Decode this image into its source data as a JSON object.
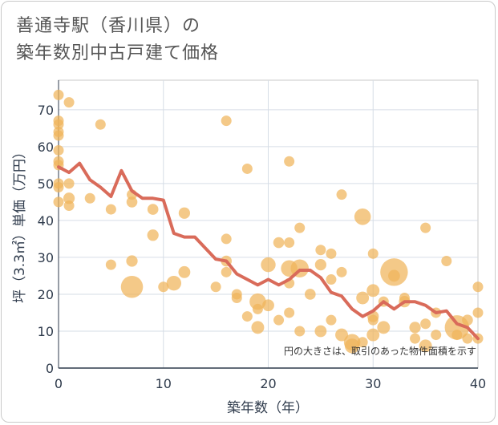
{
  "chart_data": {
    "type": "scatter",
    "title_line1": "善通寺駅（香川県）の",
    "title_line2": "築年数別中古戸建て価格",
    "xlabel": "築年数（年）",
    "ylabel": "坪（3.3㎡）単価（万円）",
    "xlim": [
      0,
      40
    ],
    "ylim": [
      0,
      78
    ],
    "xticks": [
      0,
      10,
      20,
      30,
      40
    ],
    "yticks": [
      0,
      10,
      20,
      30,
      40,
      50,
      60,
      70
    ],
    "annotation": "円の大きさは、取引のあった物件面積を示す",
    "bubble_color": "#f0b45a",
    "line_color": "#d96b5a",
    "grid": true,
    "scatter_points": [
      {
        "x": 0,
        "y": 74,
        "size": 1
      },
      {
        "x": 0,
        "y": 67,
        "size": 1
      },
      {
        "x": 0,
        "y": 66,
        "size": 1
      },
      {
        "x": 0,
        "y": 64,
        "size": 1
      },
      {
        "x": 0,
        "y": 63,
        "size": 1
      },
      {
        "x": 0,
        "y": 59,
        "size": 1
      },
      {
        "x": 0,
        "y": 56,
        "size": 1
      },
      {
        "x": 0,
        "y": 55,
        "size": 1
      },
      {
        "x": 0,
        "y": 50,
        "size": 1
      },
      {
        "x": 0,
        "y": 49,
        "size": 1
      },
      {
        "x": 0,
        "y": 45,
        "size": 1
      },
      {
        "x": 1,
        "y": 72,
        "size": 1
      },
      {
        "x": 1,
        "y": 50,
        "size": 1
      },
      {
        "x": 1,
        "y": 46,
        "size": 1.2
      },
      {
        "x": 1,
        "y": 44,
        "size": 1
      },
      {
        "x": 3,
        "y": 46,
        "size": 1
      },
      {
        "x": 4,
        "y": 66,
        "size": 1
      },
      {
        "x": 5,
        "y": 43,
        "size": 1
      },
      {
        "x": 5,
        "y": 28,
        "size": 1
      },
      {
        "x": 7,
        "y": 47,
        "size": 1
      },
      {
        "x": 7,
        "y": 45,
        "size": 1.1
      },
      {
        "x": 7,
        "y": 29,
        "size": 1.2
      },
      {
        "x": 7,
        "y": 22,
        "size": 4.5
      },
      {
        "x": 9,
        "y": 43,
        "size": 1.1
      },
      {
        "x": 9,
        "y": 36,
        "size": 1.2
      },
      {
        "x": 10,
        "y": 22,
        "size": 1
      },
      {
        "x": 11,
        "y": 23,
        "size": 2
      },
      {
        "x": 12,
        "y": 42,
        "size": 1.2
      },
      {
        "x": 12,
        "y": 26,
        "size": 1.3
      },
      {
        "x": 15,
        "y": 22,
        "size": 1
      },
      {
        "x": 16,
        "y": 67,
        "size": 1
      },
      {
        "x": 16,
        "y": 35,
        "size": 1
      },
      {
        "x": 16,
        "y": 29,
        "size": 1.1
      },
      {
        "x": 16,
        "y": 26,
        "size": 1
      },
      {
        "x": 17,
        "y": 20,
        "size": 1
      },
      {
        "x": 17,
        "y": 19,
        "size": 1
      },
      {
        "x": 18,
        "y": 54,
        "size": 1
      },
      {
        "x": 18,
        "y": 14,
        "size": 1
      },
      {
        "x": 19,
        "y": 18,
        "size": 2.5
      },
      {
        "x": 19,
        "y": 16,
        "size": 1
      },
      {
        "x": 19,
        "y": 11,
        "size": 1.5
      },
      {
        "x": 20,
        "y": 28,
        "size": 2
      },
      {
        "x": 20,
        "y": 17,
        "size": 1.3
      },
      {
        "x": 21,
        "y": 34,
        "size": 1.1
      },
      {
        "x": 21,
        "y": 13,
        "size": 1
      },
      {
        "x": 22,
        "y": 56,
        "size": 1
      },
      {
        "x": 22,
        "y": 34,
        "size": 1
      },
      {
        "x": 22,
        "y": 27,
        "size": 2.5
      },
      {
        "x": 22,
        "y": 23,
        "size": 1
      },
      {
        "x": 22,
        "y": 15,
        "size": 1
      },
      {
        "x": 23,
        "y": 38,
        "size": 1
      },
      {
        "x": 23,
        "y": 27,
        "size": 3
      },
      {
        "x": 23,
        "y": 10,
        "size": 1
      },
      {
        "x": 24,
        "y": 20,
        "size": 1.1
      },
      {
        "x": 25,
        "y": 32,
        "size": 1
      },
      {
        "x": 25,
        "y": 28,
        "size": 1.2
      },
      {
        "x": 25,
        "y": 10,
        "size": 1.3
      },
      {
        "x": 26,
        "y": 31,
        "size": 1
      },
      {
        "x": 26,
        "y": 24,
        "size": 1
      },
      {
        "x": 26,
        "y": 13,
        "size": 1
      },
      {
        "x": 27,
        "y": 47,
        "size": 1
      },
      {
        "x": 27,
        "y": 26,
        "size": 1
      },
      {
        "x": 27,
        "y": 9,
        "size": 1.5
      },
      {
        "x": 28,
        "y": 7,
        "size": 2.5
      },
      {
        "x": 28,
        "y": 6,
        "size": 2
      },
      {
        "x": 29,
        "y": 41,
        "size": 2.5
      },
      {
        "x": 29,
        "y": 19,
        "size": 1.5
      },
      {
        "x": 29,
        "y": 7,
        "size": 1
      },
      {
        "x": 30,
        "y": 31,
        "size": 1
      },
      {
        "x": 30,
        "y": 21,
        "size": 1.5
      },
      {
        "x": 30,
        "y": 14,
        "size": 1.2
      },
      {
        "x": 30,
        "y": 13,
        "size": 1
      },
      {
        "x": 30,
        "y": 9,
        "size": 1.5
      },
      {
        "x": 31,
        "y": 18,
        "size": 1
      },
      {
        "x": 31,
        "y": 11,
        "size": 1.5
      },
      {
        "x": 32,
        "y": 26,
        "size": 7
      },
      {
        "x": 32,
        "y": 25,
        "size": 1.3
      },
      {
        "x": 33,
        "y": 18,
        "size": 1.2
      },
      {
        "x": 33,
        "y": 19,
        "size": 1
      },
      {
        "x": 34,
        "y": 11,
        "size": 1.2
      },
      {
        "x": 34,
        "y": 8,
        "size": 1
      },
      {
        "x": 35,
        "y": 6,
        "size": 1.5
      },
      {
        "x": 35,
        "y": 12,
        "size": 1
      },
      {
        "x": 35,
        "y": 38,
        "size": 1
      },
      {
        "x": 36,
        "y": 15,
        "size": 1
      },
      {
        "x": 36,
        "y": 9,
        "size": 1
      },
      {
        "x": 37,
        "y": 29,
        "size": 1
      },
      {
        "x": 38,
        "y": 11,
        "size": 5.5
      },
      {
        "x": 38,
        "y": 9,
        "size": 1
      },
      {
        "x": 39,
        "y": 13,
        "size": 1.1
      },
      {
        "x": 39,
        "y": 8,
        "size": 1
      },
      {
        "x": 40,
        "y": 22,
        "size": 1
      },
      {
        "x": 40,
        "y": 15,
        "size": 1
      },
      {
        "x": 40,
        "y": 8,
        "size": 1
      }
    ],
    "trend_line": {
      "x": [
        0,
        1,
        2,
        3,
        4,
        5,
        6,
        7,
        8,
        9,
        10,
        11,
        12,
        13,
        14,
        15,
        16,
        17,
        18,
        19,
        20,
        21,
        22,
        23,
        24,
        25,
        26,
        27,
        28,
        29,
        30,
        31,
        32,
        33,
        34,
        35,
        36,
        37,
        38,
        39,
        40
      ],
      "y": [
        54.5,
        53,
        55.5,
        51,
        49,
        46.5,
        53.5,
        48,
        46,
        46,
        45.5,
        36.5,
        35.5,
        35.5,
        32.5,
        29.5,
        29,
        25.5,
        24,
        22.5,
        24,
        22.5,
        24,
        26.5,
        26.5,
        24.5,
        20.5,
        19.5,
        16,
        14,
        15.5,
        18,
        16,
        18,
        18,
        17,
        15,
        15.5,
        12,
        11,
        8
      ]
    }
  }
}
